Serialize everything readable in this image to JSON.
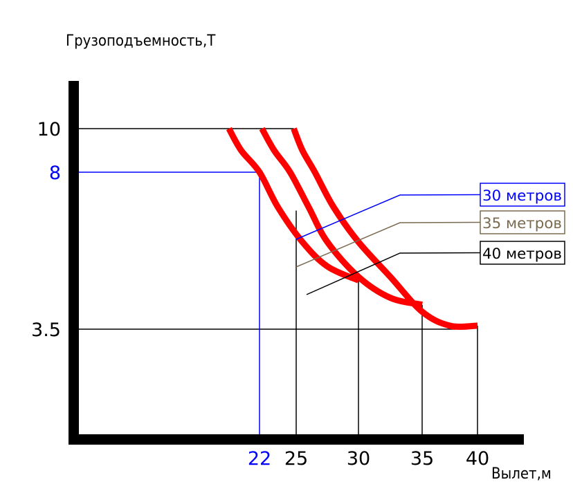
{
  "chart_data": {
    "type": "line",
    "ylabel": "Грузоподъемность,Т",
    "xlabel": "Вылет,м",
    "x_ticks": [
      "22",
      "25",
      "30",
      "35",
      "40"
    ],
    "y_ticks": [
      "10",
      "8",
      "3.5"
    ],
    "highlight": {
      "x": 22,
      "y": 8,
      "color": "#0000ff"
    },
    "series": [
      {
        "name": "30 метров",
        "color": "#ff0000",
        "legend_color": "#0000ff",
        "points": [
          [
            19.5,
            10
          ],
          [
            20.5,
            9.0
          ],
          [
            22,
            8
          ],
          [
            23.5,
            7.0
          ],
          [
            25.5,
            6.0
          ],
          [
            27.5,
            5.3
          ],
          [
            30,
            4.9
          ]
        ]
      },
      {
        "name": "35 метров",
        "color": "#ff0000",
        "legend_color": "#7a6a50",
        "points": [
          [
            22.2,
            10
          ],
          [
            23.2,
            9.0
          ],
          [
            24.5,
            8.0
          ],
          [
            26,
            7.0
          ],
          [
            27.5,
            6.0
          ],
          [
            30,
            5.0
          ],
          [
            32.5,
            4.4
          ],
          [
            35,
            4.2
          ]
        ]
      },
      {
        "name": "40 метров",
        "color": "#ff0000",
        "legend_color": "#000000",
        "points": [
          [
            24.8,
            10
          ],
          [
            25.5,
            9.0
          ],
          [
            26.5,
            8.0
          ],
          [
            28,
            7.0
          ],
          [
            30,
            6.0
          ],
          [
            32.5,
            5.0
          ],
          [
            35,
            4.0
          ],
          [
            37.5,
            3.6
          ],
          [
            40,
            3.6
          ]
        ]
      }
    ]
  }
}
